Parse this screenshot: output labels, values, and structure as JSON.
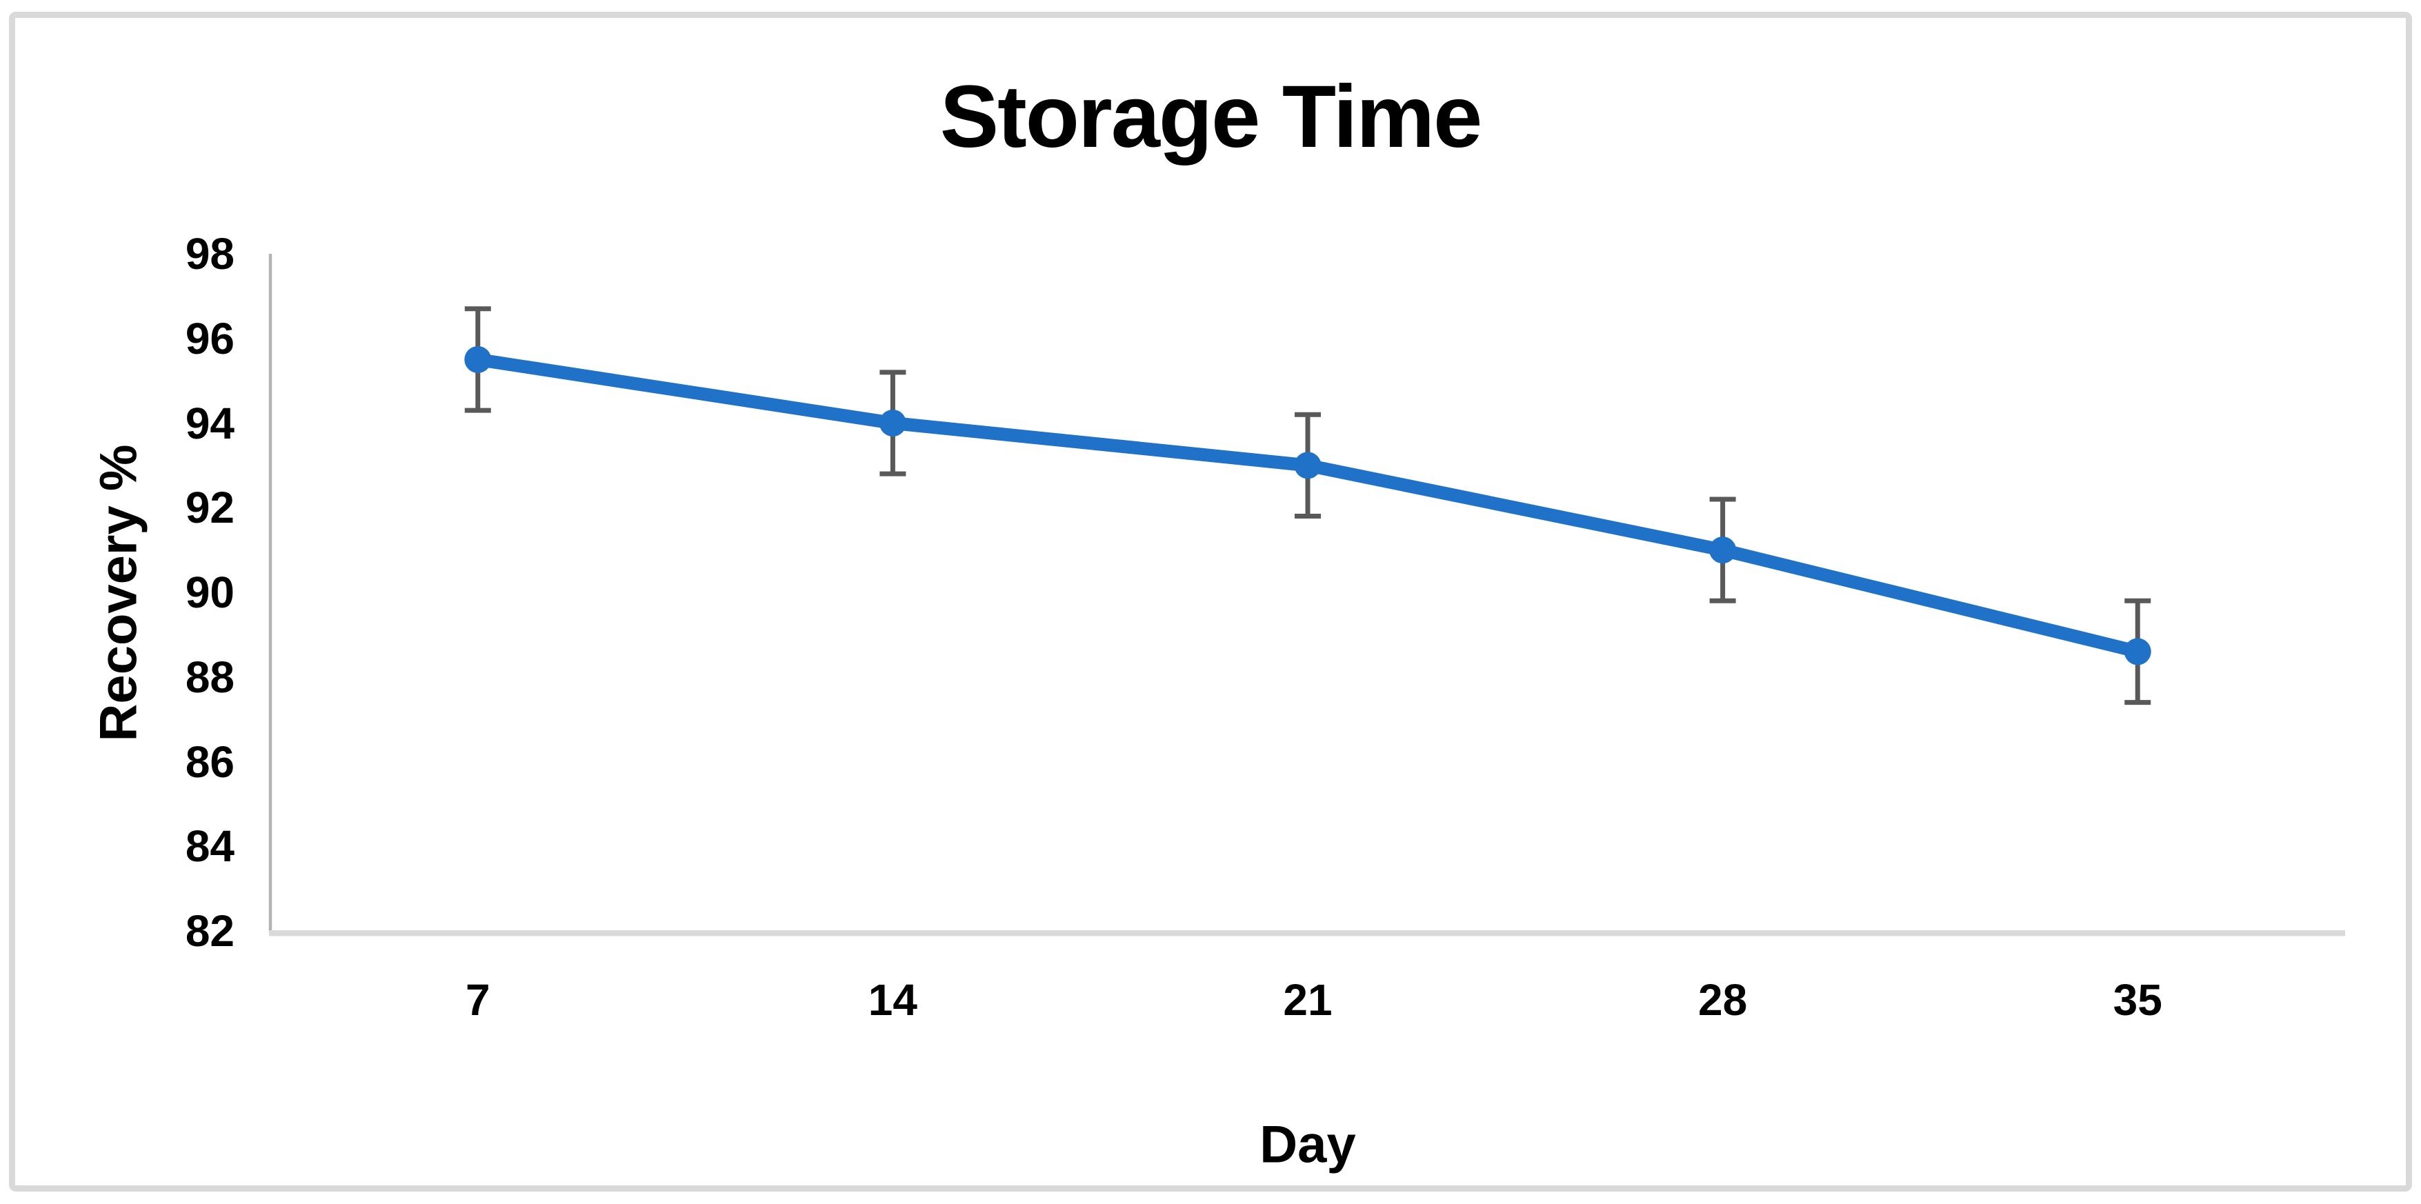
{
  "chart_data": {
    "type": "line",
    "title": "Storage Time",
    "xlabel": "Day",
    "ylabel": "Recovery %",
    "categories": [
      "7",
      "14",
      "21",
      "28",
      "35"
    ],
    "series": [
      {
        "values": [
          95.5,
          94.0,
          93.0,
          91.0,
          88.6
        ],
        "error_bars": [
          1.2,
          1.2,
          1.2,
          1.2,
          1.2
        ]
      }
    ],
    "ylim": [
      82,
      98
    ],
    "ytick_step": 2,
    "yticks": [
      98,
      96,
      94,
      92,
      90,
      88,
      86,
      84,
      82
    ],
    "grid": false,
    "legend": false,
    "marker_style": "circle",
    "colors": {
      "line": "#1f72c8",
      "marker": "#1f72c8",
      "error_bar": "#595959",
      "y_axis_line": "#b3b3b3",
      "x_axis_line": "#d9d9d9",
      "text": "#000000",
      "frame_border": "#d9d9d9",
      "background": "#ffffff"
    }
  }
}
